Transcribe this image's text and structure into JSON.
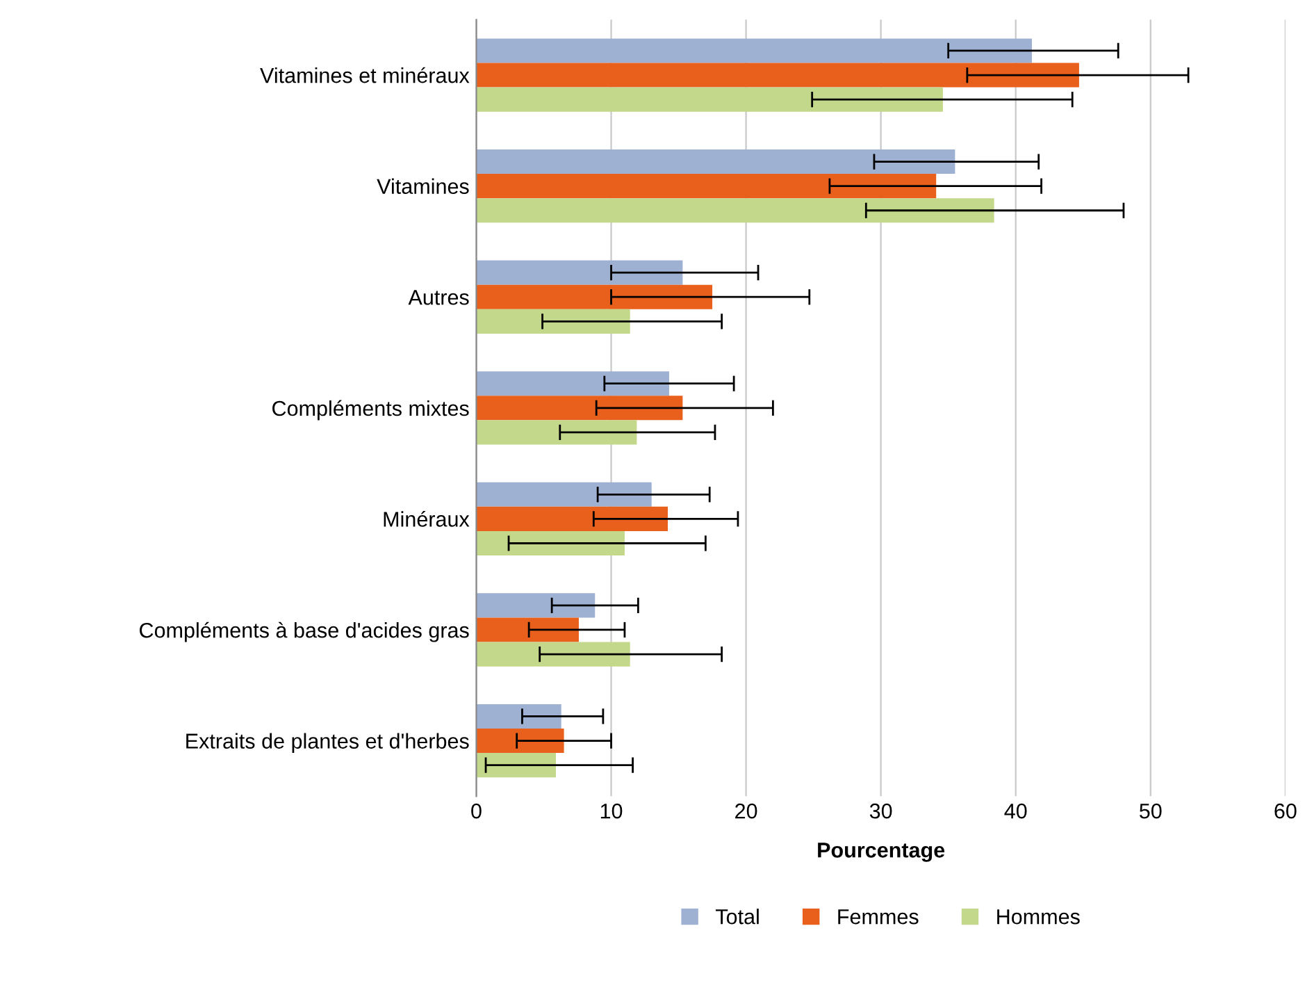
{
  "chart_data": {
    "type": "bar",
    "orientation": "horizontal",
    "xlabel": "Pourcentage",
    "categories": [
      "Vitamines et minéraux",
      "Vitamines",
      "Autres",
      "Compléments mixtes",
      "Minéraux",
      "Compléments à base d'acides gras",
      "Extraits de plantes et d'herbes"
    ],
    "series": [
      {
        "name": "Total",
        "color": "#9fb1d3",
        "values": [
          41.2,
          35.5,
          15.3,
          14.3,
          13.0,
          8.8,
          6.3
        ],
        "errors": [
          [
            35.0,
            47.6
          ],
          [
            29.5,
            41.7
          ],
          [
            10.0,
            20.9
          ],
          [
            9.5,
            19.1
          ],
          [
            9.0,
            17.3
          ],
          [
            5.6,
            12.0
          ],
          [
            3.4,
            9.4
          ]
        ]
      },
      {
        "name": "Femmes",
        "color": "#e8601c",
        "values": [
          44.7,
          34.1,
          17.5,
          15.3,
          14.2,
          7.6,
          6.5
        ],
        "errors": [
          [
            36.4,
            52.8
          ],
          [
            26.2,
            41.9
          ],
          [
            10.0,
            24.7
          ],
          [
            8.9,
            22.0
          ],
          [
            8.7,
            19.4
          ],
          [
            3.9,
            11.0
          ],
          [
            3.0,
            10.0
          ]
        ]
      },
      {
        "name": "Hommes",
        "color": "#c3d88a",
        "values": [
          34.6,
          38.4,
          11.4,
          11.9,
          11.0,
          11.4,
          5.9
        ],
        "errors": [
          [
            24.9,
            44.2
          ],
          [
            28.9,
            48.0
          ],
          [
            4.9,
            18.2
          ],
          [
            6.2,
            17.7
          ],
          [
            2.4,
            17.0
          ],
          [
            4.7,
            18.2
          ],
          [
            0.7,
            11.6
          ]
        ]
      }
    ],
    "xlim": [
      0,
      60
    ],
    "xticks": [
      0,
      10,
      20,
      30,
      40,
      50,
      60
    ],
    "grid": "x",
    "legend": "bottom"
  }
}
